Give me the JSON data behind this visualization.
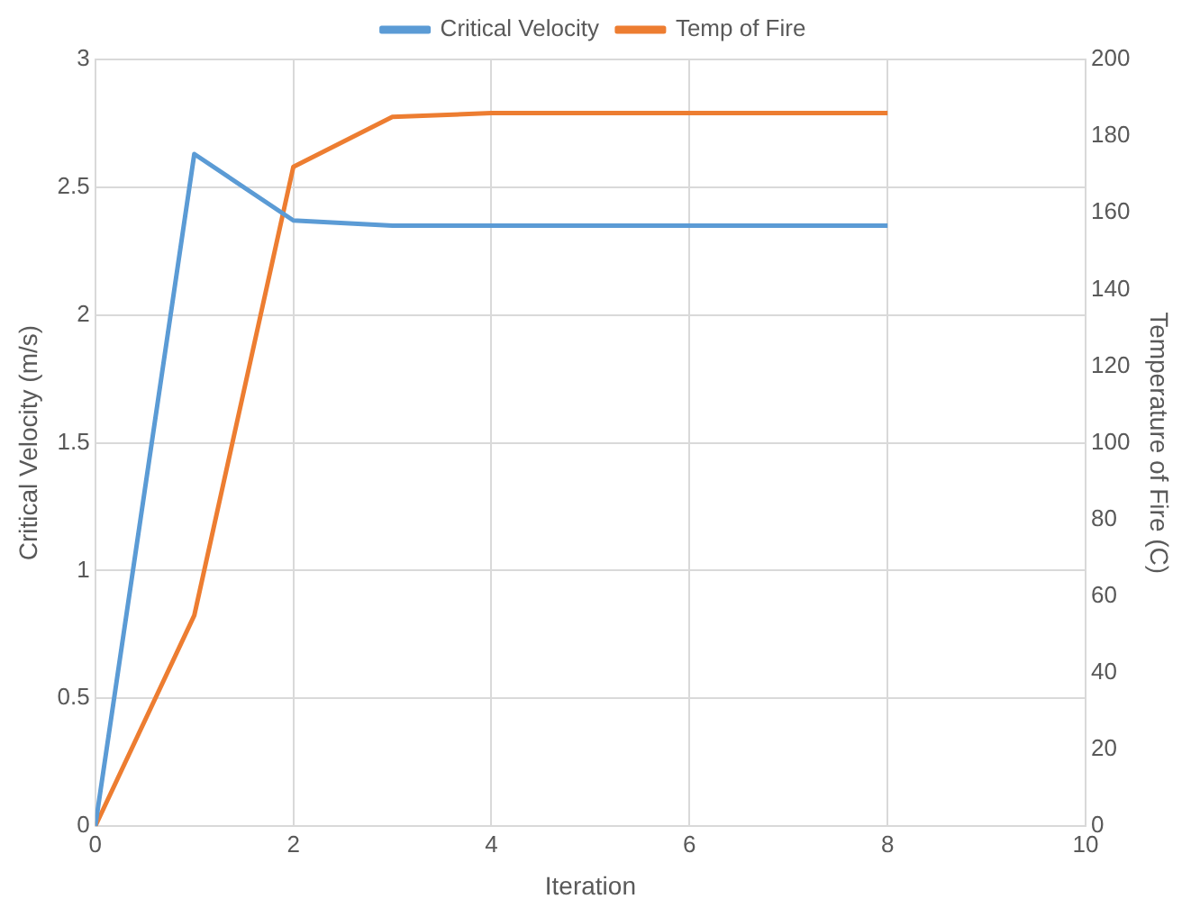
{
  "chart_data": {
    "type": "line",
    "xlabel": "Iteration",
    "ylabel": "Critical Velocity (m/s)",
    "y2label": "Temperature of Fire (C)",
    "x": [
      0,
      1,
      2,
      3,
      4,
      5,
      6,
      7,
      8
    ],
    "series": [
      {
        "name": "Critical Velocity",
        "color": "#5b9bd5",
        "values": [
          0,
          2.63,
          2.37,
          2.35,
          2.35,
          2.35,
          2.35,
          2.35,
          2.35
        ]
      },
      {
        "name": "Temp of Fire",
        "color": "#ed7d31",
        "axis": "y2",
        "values": [
          0,
          55,
          172,
          185,
          186,
          186,
          186,
          186,
          186
        ]
      }
    ],
    "xlim": [
      0,
      10
    ],
    "xticks": [
      0,
      2,
      4,
      6,
      8,
      10
    ],
    "ylim": [
      0,
      3
    ],
    "yticks": [
      0,
      0.5,
      1,
      1.5,
      2,
      2.5,
      3
    ],
    "y2lim": [
      0,
      200
    ],
    "y2ticks": [
      0,
      20,
      40,
      60,
      80,
      100,
      120,
      140,
      160,
      180,
      200
    ],
    "grid": true,
    "legend": "top",
    "marker": "none"
  }
}
